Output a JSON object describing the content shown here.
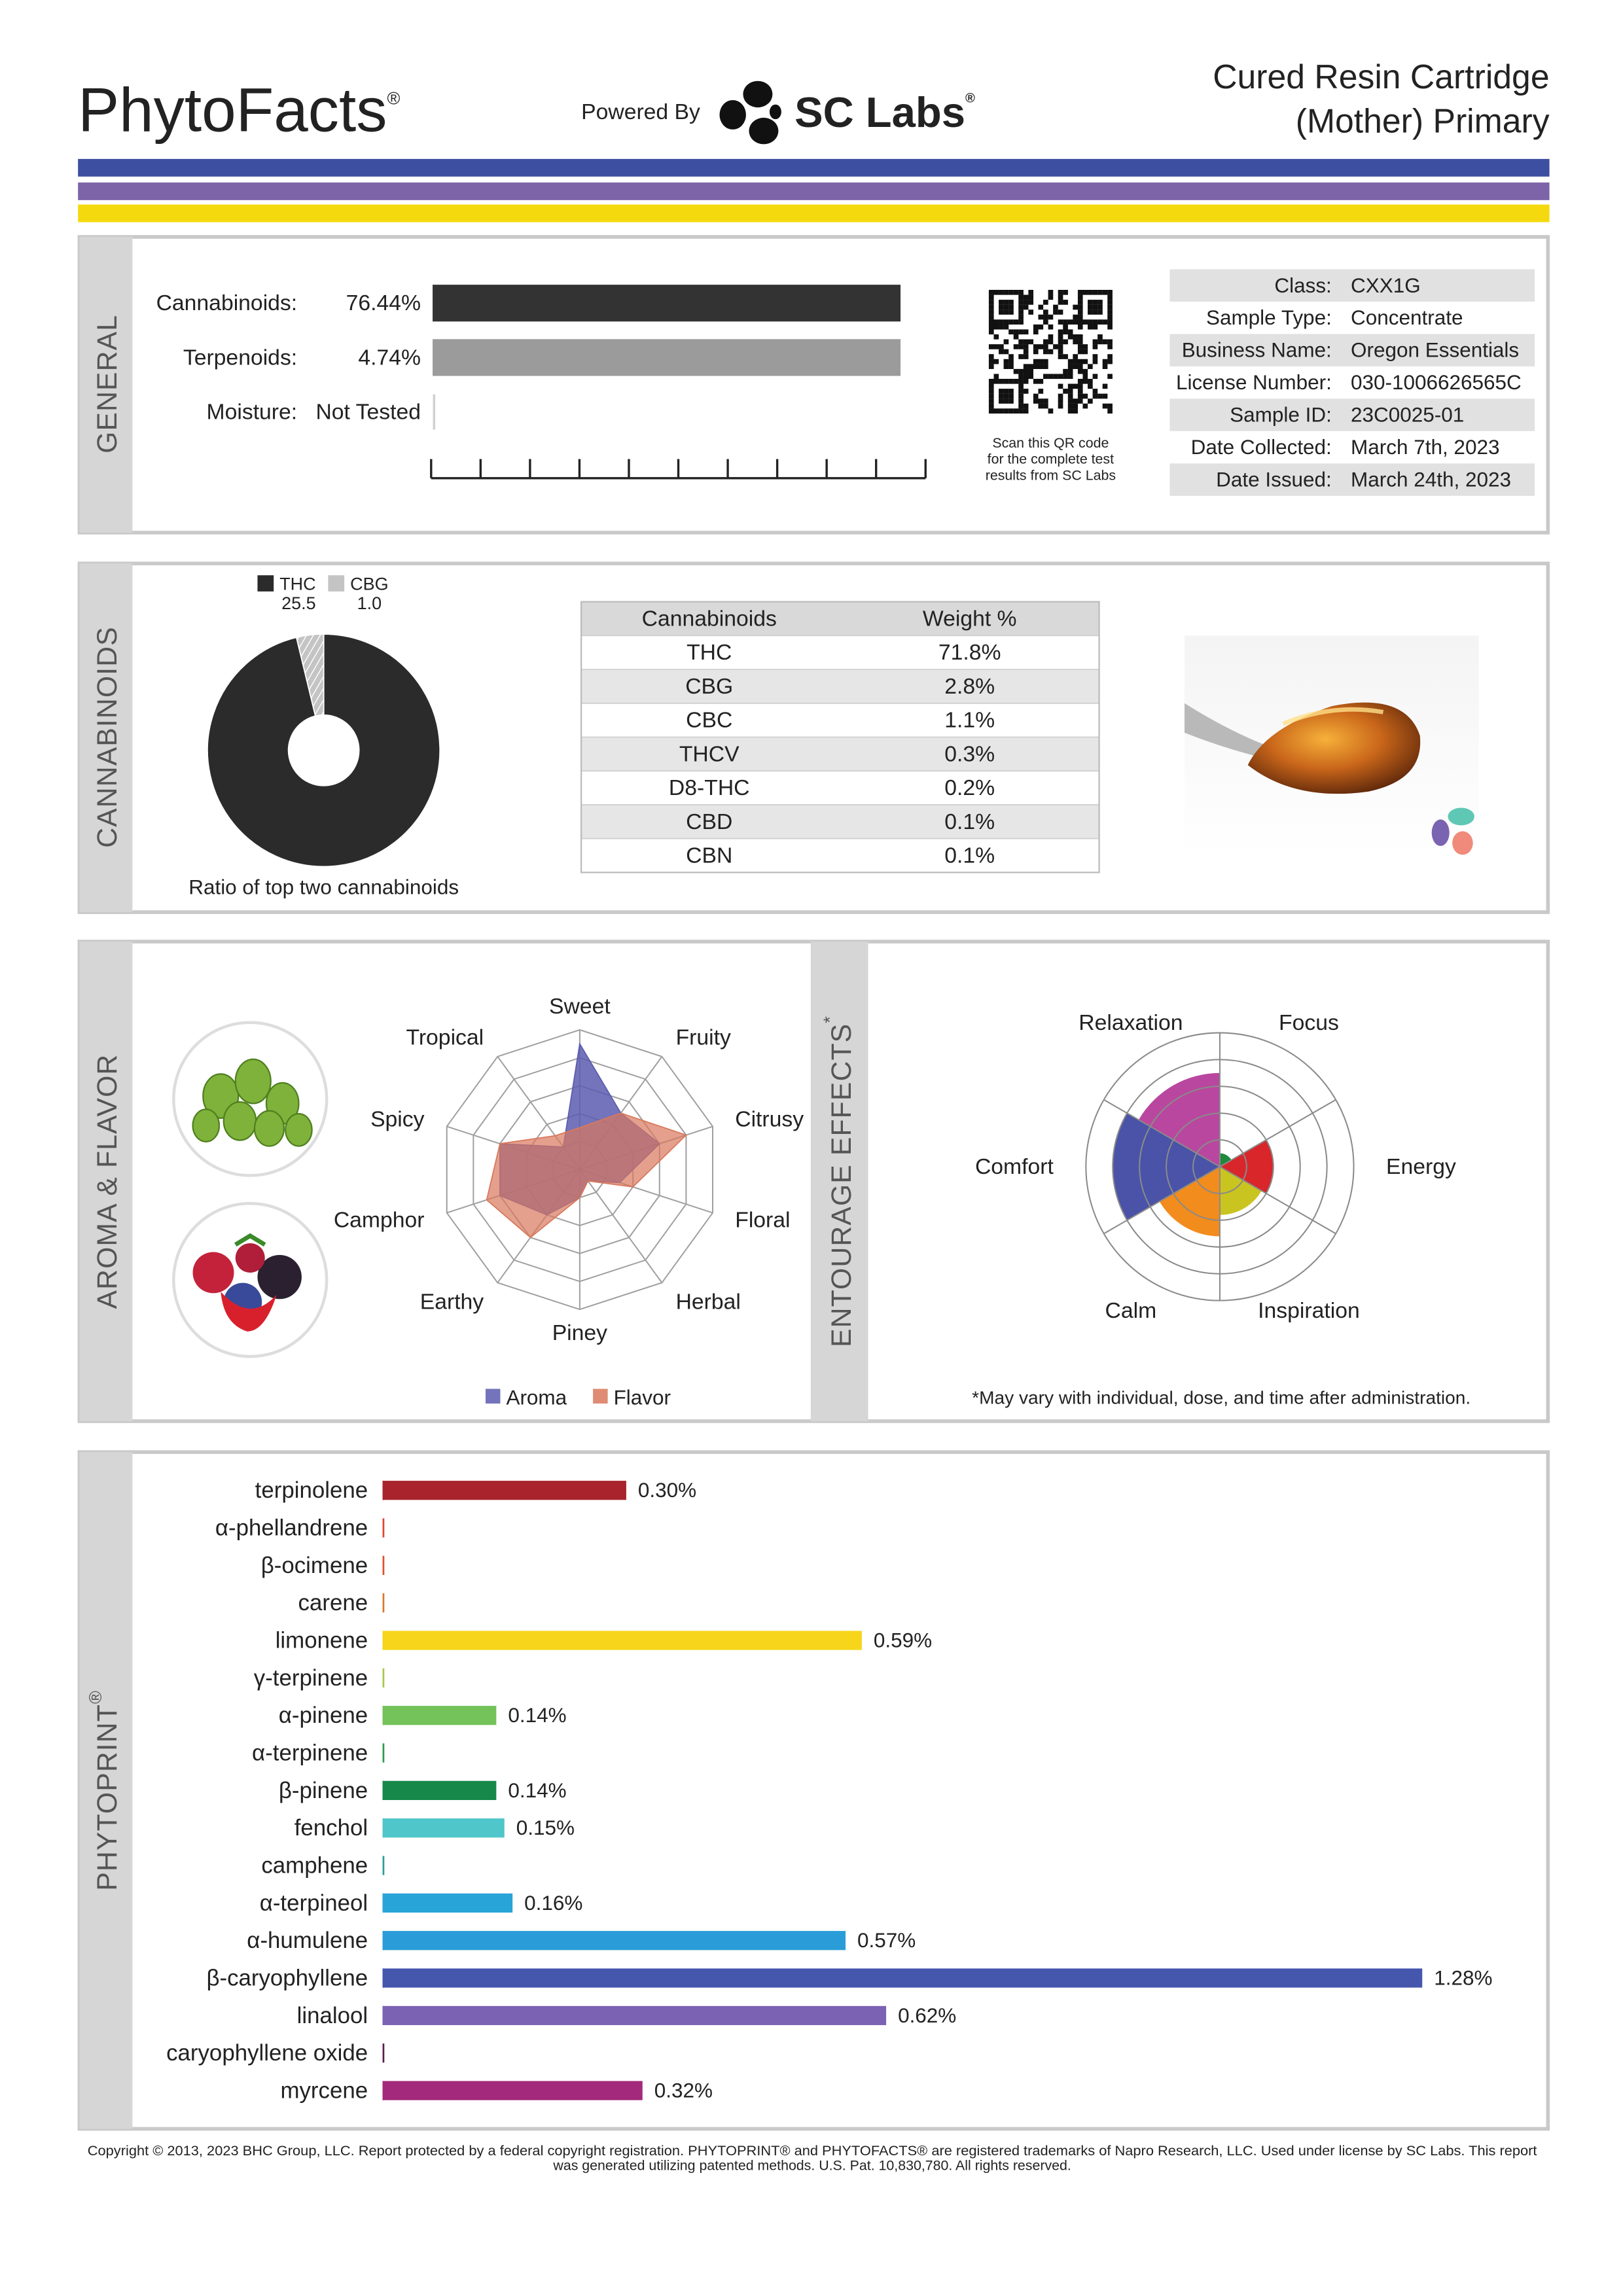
{
  "header": {
    "brand": "PhytoFacts",
    "brand_mark": "®",
    "powered_by": "Powered By",
    "lab": "SC Labs",
    "lab_mark": "®",
    "product": [
      "Cured Resin Cartridge",
      "(Mother) Primary"
    ]
  },
  "general": {
    "label": "GENERAL",
    "rows": [
      {
        "name": "Cannabinoids:",
        "value": "76.44%",
        "color": "#333333"
      },
      {
        "name": "Terpenoids:",
        "value": "4.74%",
        "color": "#9b9b9b"
      },
      {
        "name": "Moisture:",
        "value": "Not Tested"
      }
    ],
    "qr_caption": [
      "Scan this QR code",
      "for the complete test",
      "results from SC Labs"
    ],
    "info": [
      [
        "Class:",
        "CXX1G"
      ],
      [
        "Sample Type:",
        "Concentrate"
      ],
      [
        "Business Name:",
        "Oregon Essentials"
      ],
      [
        "License Number:",
        "030-1006626565C"
      ],
      [
        "Sample ID:",
        "23C0025-01"
      ],
      [
        "Date Collected:",
        "March 7th, 2023"
      ],
      [
        "Date Issued:",
        "March 24th, 2023"
      ]
    ]
  },
  "cannabinoids": {
    "label": "CANNABINOIDS",
    "ratio": {
      "type": "pie",
      "series": [
        {
          "name": "THC",
          "value": 25.5,
          "color": "#2b2b2b"
        },
        {
          "name": "CBG",
          "value": 1.0,
          "value_label": "1.0",
          "color": "#c4c4c4"
        }
      ],
      "caption": "Ratio of top two cannabinoids"
    },
    "table": {
      "header": [
        "Cannabinoids",
        "Weight %"
      ],
      "rows": [
        [
          "THC",
          "71.8%"
        ],
        [
          "CBG",
          "2.8%"
        ],
        [
          "CBC",
          "1.1%"
        ],
        [
          "THCV",
          "0.3%"
        ],
        [
          "D8-THC",
          "0.2%"
        ],
        [
          "CBD",
          "0.1%"
        ],
        [
          "CBN",
          "0.1%"
        ]
      ]
    }
  },
  "aroma_flavor": {
    "label": "AROMA & FLAVOR",
    "type": "radar",
    "axes": [
      "Sweet",
      "Fruity",
      "Citrusy",
      "Floral",
      "Herbal",
      "Piney",
      "Earthy",
      "Camphor",
      "Spicy",
      "Tropical"
    ],
    "rlim": [
      0,
      5
    ],
    "rticks": [
      1,
      2,
      3,
      4,
      5
    ],
    "series": [
      {
        "name": "Aroma",
        "color": "#5c5cb0",
        "values": [
          4.5,
          2.5,
          3,
          1.5,
          0.5,
          1,
          2,
          3,
          3,
          1
        ]
      },
      {
        "name": "Flavor",
        "color": "#d9785c",
        "values": [
          1.5,
          2.5,
          4,
          2,
          0.5,
          1,
          3,
          3.5,
          3,
          1.5
        ]
      }
    ]
  },
  "entourage": {
    "label": "ENTOURAGE EFFECTS",
    "label_mark": "*",
    "type": "polar",
    "rlim": [
      0,
      5
    ],
    "rticks": [
      1,
      2,
      3,
      4,
      5
    ],
    "effects": [
      {
        "name": "Focus",
        "value": 0.5,
        "color": "#1f8a3c"
      },
      {
        "name": "Energy",
        "value": 2,
        "color": "#d8262b"
      },
      {
        "name": "Inspiration",
        "value": 1.8,
        "color": "#c9c41f"
      },
      {
        "name": "Calm",
        "value": 2.6,
        "color": "#f28c1c"
      },
      {
        "name": "Comfort",
        "value": 4,
        "color": "#4a53a8"
      },
      {
        "name": "Relaxation",
        "value": 3.5,
        "color": "#b9479f"
      }
    ],
    "note": "*May vary with individual, dose, and time after administration."
  },
  "phytoprint": {
    "label": "PHYTOPRINT",
    "label_mark": "®",
    "type": "bar",
    "terpenes": [
      {
        "name": "terpinolene",
        "value": 0.3,
        "value_label": "0.30%",
        "color": "#a8232b",
        "label_color": "#a8232b"
      },
      {
        "name": "α-phellandrene",
        "value": 0,
        "color": "#e0452e",
        "label_color": "#d8342a"
      },
      {
        "name": "β-ocimene",
        "value": 0,
        "color": "#e2502a",
        "label_color": "#d9402a"
      },
      {
        "name": "carene",
        "value": 0,
        "color": "#d9772a",
        "label_color": "#c86a20"
      },
      {
        "name": "limonene",
        "value": 0.59,
        "value_label": "0.59%",
        "color": "#f6d51a",
        "label_color": "#8c7a12"
      },
      {
        "name": "γ-terpinene",
        "value": 0,
        "color": "#a5c84a",
        "label_color": "#6d8f2e"
      },
      {
        "name": "α-pinene",
        "value": 0.14,
        "value_label": "0.14%",
        "color": "#74c25a",
        "label_color": "#3d8e3a"
      },
      {
        "name": "α-terpinene",
        "value": 0,
        "color": "#2f9a4d",
        "label_color": "#1f8a45"
      },
      {
        "name": "β-pinene",
        "value": 0.14,
        "value_label": "0.14%",
        "color": "#16884a",
        "label_color": "#16884a"
      },
      {
        "name": "fenchol",
        "value": 0.15,
        "value_label": "0.15%",
        "color": "#4fc6c9",
        "label_color": "#1a8c90"
      },
      {
        "name": "camphene",
        "value": 0,
        "color": "#2a9d9a",
        "label_color": "#1a8a8a"
      },
      {
        "name": "α-terpineol",
        "value": 0.16,
        "value_label": "0.16%",
        "color": "#28a4d8",
        "label_color": "#1d7ea8"
      },
      {
        "name": "α-humulene",
        "value": 0.57,
        "value_label": "0.57%",
        "color": "#2a9cd8",
        "label_color": "#2a6aa8"
      },
      {
        "name": "β-caryophyllene",
        "value": 1.28,
        "value_label": "1.28%",
        "color": "#4556ad",
        "label_color": "#3b4a9e"
      },
      {
        "name": "linalool",
        "value": 0.62,
        "value_label": "0.62%",
        "color": "#7b62b3",
        "label_color": "#6a55a8"
      },
      {
        "name": "caryophyllene oxide",
        "value": 0,
        "color": "#5b1d4b",
        "label_color": "#4a1a3a"
      },
      {
        "name": "myrcene",
        "value": 0.32,
        "value_label": "0.32%",
        "color": "#a3297c",
        "label_color": "#a3297c"
      }
    ]
  },
  "footer": [
    "Copyright © 2013, 2023 BHC Group, LLC. Report protected by a federal copyright registration. PHYTOPRINT® and PHYTOFACTS® are registered trademarks of Napro Research, LLC. Used under license by SC Labs. This report",
    "was generated utilizing patented methods. U.S. Pat. 10,830,780. All rights reserved."
  ]
}
